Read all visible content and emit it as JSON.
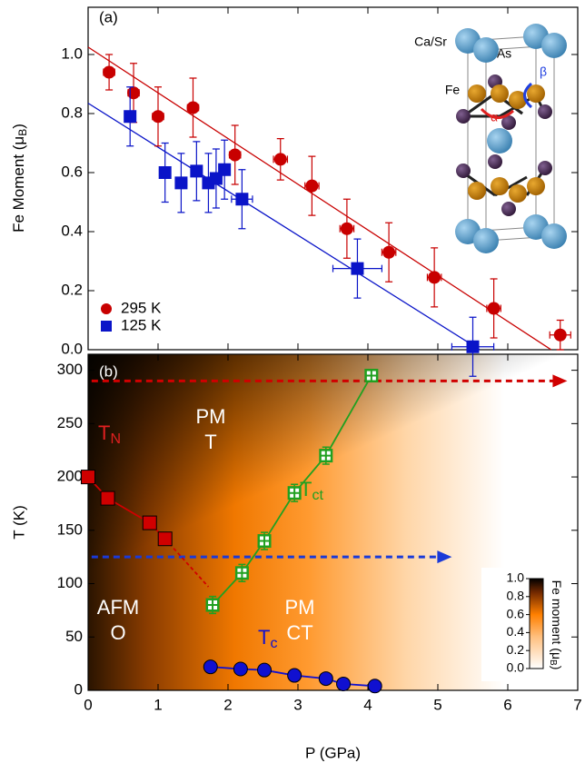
{
  "chart_data": [
    {
      "type": "scatter",
      "panel_label": "(a)",
      "ylabel": [
        "Fe Moment (μ",
        "B",
        ")"
      ],
      "xlim": [
        0,
        7
      ],
      "xticks": [
        0,
        1,
        2,
        3,
        4,
        5,
        6,
        7
      ],
      "ylim": [
        0,
        1.16
      ],
      "yticks": [
        {
          "value": 0,
          "label": "0.0"
        },
        0.2,
        0.4,
        0.6,
        0.8,
        {
          "value": 1,
          "label": "1.0"
        }
      ],
      "legend": "lower left",
      "series": [
        {
          "name": "295 K",
          "color": "#c80000",
          "marker": "circle",
          "x": [
            0.3,
            0.65,
            1.0,
            1.5,
            2.1,
            2.75,
            3.2,
            3.7,
            4.3,
            4.95,
            5.8,
            6.75
          ],
          "values": [
            0.94,
            0.87,
            0.79,
            0.82,
            0.66,
            0.645,
            0.555,
            0.41,
            0.33,
            0.245,
            0.14,
            0.05
          ],
          "yerr": [
            0.06,
            0.1,
            0.1,
            0.1,
            0.1,
            0.07,
            0.1,
            0.1,
            0.1,
            0.1,
            0.1,
            0.05
          ],
          "xerr": [
            0.08,
            0.08,
            0.08,
            0.08,
            0.08,
            0.1,
            0.1,
            0.1,
            0.1,
            0.1,
            0.1,
            0.15
          ]
        },
        {
          "name": "125 K",
          "color": "#0a14c8",
          "marker": "square",
          "x": [
            0.6,
            1.1,
            1.33,
            1.55,
            1.72,
            1.83,
            1.95,
            2.2,
            3.85,
            5.5
          ],
          "values": [
            0.79,
            0.6,
            0.565,
            0.605,
            0.565,
            0.58,
            0.61,
            0.51,
            0.275,
            0.01
          ],
          "yerr": [
            0.1,
            0.1,
            0.1,
            0.1,
            0.1,
            0.1,
            0.1,
            0.1,
            0.1,
            0.1
          ],
          "xerr": [
            0.08,
            0.08,
            0.08,
            0.08,
            0.08,
            0.08,
            0.08,
            0.15,
            0.35,
            0.3
          ]
        }
      ],
      "fits": [
        {
          "color": "#c80000",
          "x": [
            0,
            6.62
          ],
          "values": [
            1.025,
            0
          ]
        },
        {
          "color": "#0a14c8",
          "x": [
            0,
            5.6
          ],
          "values": [
            0.835,
            0
          ]
        }
      ],
      "inset_labels": [
        "Ca/Sr",
        "As",
        "Fe",
        "α",
        "β"
      ]
    },
    {
      "type": "line",
      "panel_label": "(b)",
      "xlabel": "P (GPa)",
      "ylabel": "T (K)",
      "xlim": [
        0,
        7
      ],
      "xticks": [
        0,
        1,
        2,
        3,
        4,
        5,
        6,
        7
      ],
      "ylim": [
        0,
        315
      ],
      "yticks": [
        0,
        50,
        100,
        150,
        200,
        250,
        300
      ],
      "series": [
        {
          "name": [
            "T",
            "N"
          ],
          "color": "#d00000",
          "marker": "square",
          "x": [
            0,
            0.28,
            0.88,
            1.1
          ],
          "values": [
            200,
            180,
            157,
            142
          ],
          "extrapolation": {
            "x": [
              1.1,
              1.72
            ],
            "values": [
              142,
              97
            ]
          }
        },
        {
          "name": [
            "T",
            "ct"
          ],
          "color": "#20a020",
          "marker": "open-square",
          "x": [
            1.78,
            2.2,
            2.52,
            2.95,
            3.4,
            4.05
          ],
          "values": [
            80,
            110,
            140,
            185,
            220,
            295
          ],
          "yerr": [
            8,
            8,
            8,
            8,
            8,
            5
          ]
        },
        {
          "name": [
            "T",
            "c"
          ],
          "color": "#1010d0",
          "marker": "circle",
          "x": [
            1.75,
            2.18,
            2.52,
            2.95,
            3.4,
            3.65,
            4.1
          ],
          "values": [
            22,
            20,
            19,
            14,
            11,
            6,
            4
          ]
        }
      ],
      "arrows": [
        {
          "color": "#d00000",
          "y": 290,
          "x": [
            0.05,
            6.85
          ]
        },
        {
          "color": "#1a3ad8",
          "y": 125,
          "x": [
            0.05,
            5.2
          ]
        }
      ],
      "regions": [
        [
          "PM",
          "T"
        ],
        [
          "AFM",
          "O"
        ],
        [
          "PM",
          "CT"
        ]
      ],
      "colorbar": {
        "label": [
          "Fe moment (μ",
          "B",
          ")"
        ],
        "lim": [
          0,
          1
        ],
        "ticks": [
          {
            "value": 0,
            "label": "0.0"
          },
          0.2,
          0.4,
          0.6,
          0.8,
          {
            "value": 1,
            "label": "1.0"
          }
        ]
      }
    }
  ]
}
